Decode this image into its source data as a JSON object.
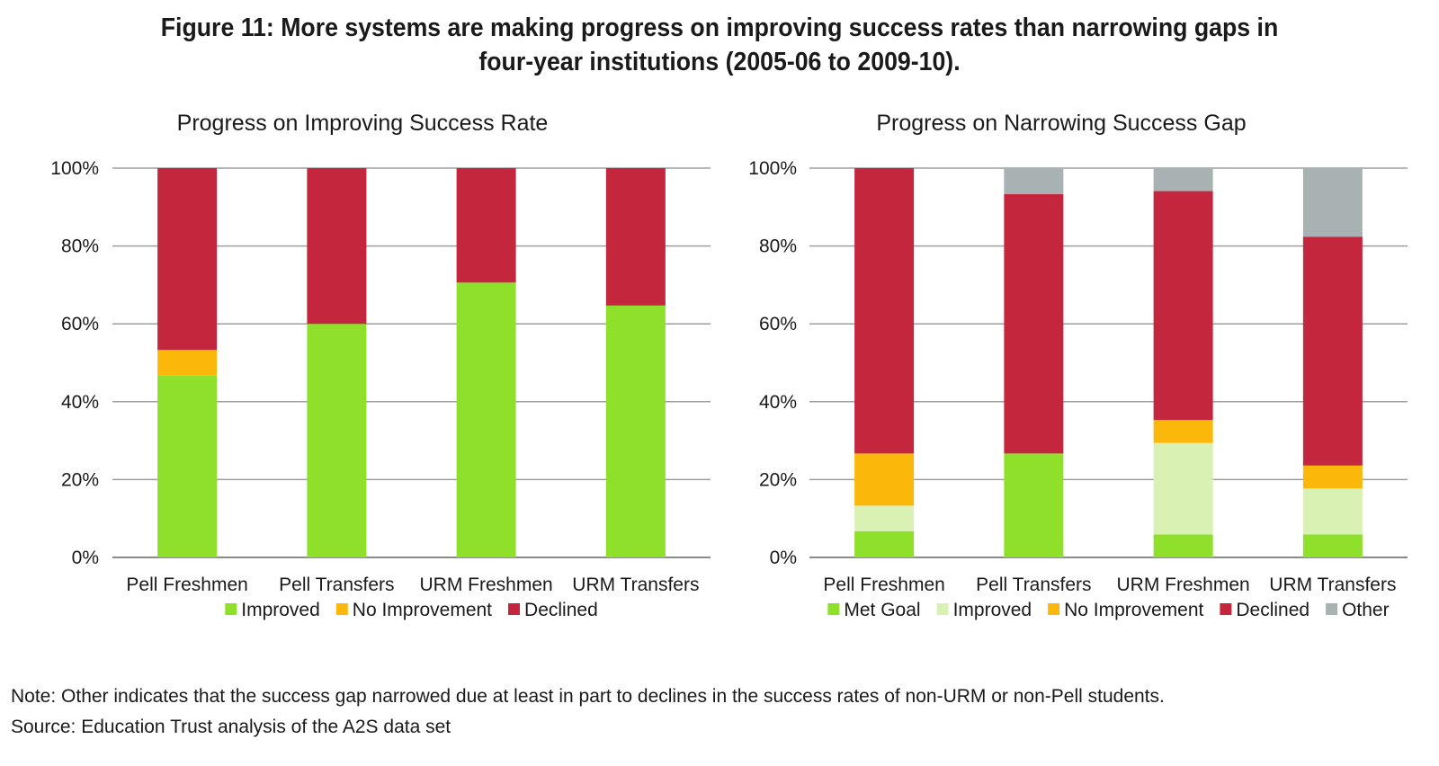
{
  "figure": {
    "title_line1": "Figure 11: More systems are making progress on improving success rates than narrowing gaps in",
    "title_line2": "four-year institutions (2005-06 to 2009-10)."
  },
  "chart_data": [
    {
      "type": "bar",
      "stacked": true,
      "title": "Progress on Improving Success Rate",
      "categories": [
        "Pell Freshmen",
        "Pell Transfers",
        "URM Freshmen",
        "URM Transfers"
      ],
      "y_ticks": [
        "0%",
        "20%",
        "40%",
        "60%",
        "80%",
        "100%"
      ],
      "ylim": [
        0,
        100
      ],
      "grid": true,
      "legend_position": "bottom",
      "series": [
        {
          "name": "Improved",
          "color": "#8fe02a",
          "values": [
            46.7,
            60,
            70.6,
            64.7
          ]
        },
        {
          "name": "No Improvement",
          "color": "#fbb80a",
          "values": [
            6.6,
            0,
            0,
            0
          ]
        },
        {
          "name": "Declined",
          "color": "#c4263e",
          "values": [
            46.7,
            40,
            29.4,
            35.3
          ]
        }
      ]
    },
    {
      "type": "bar",
      "stacked": true,
      "title": "Progress on Narrowing Success Gap",
      "categories": [
        "Pell Freshmen",
        "Pell Transfers",
        "URM Freshmen",
        "URM Transfers"
      ],
      "y_ticks": [
        "0%",
        "20%",
        "40%",
        "60%",
        "80%",
        "100%"
      ],
      "ylim": [
        0,
        100
      ],
      "grid": true,
      "legend_position": "bottom",
      "series": [
        {
          "name": "Met Goal",
          "color": "#8fe02a",
          "values": [
            6.7,
            26.7,
            5.9,
            5.9
          ]
        },
        {
          "name": "Improved",
          "color": "#d9f2b4",
          "values": [
            6.6,
            0,
            23.5,
            11.8
          ]
        },
        {
          "name": "No Improvement",
          "color": "#fbb80a",
          "values": [
            13.4,
            0,
            5.9,
            5.9
          ]
        },
        {
          "name": "Declined",
          "color": "#c4263e",
          "values": [
            73.3,
            66.6,
            58.8,
            58.8
          ]
        },
        {
          "name": "Other",
          "color": "#a9b2b3",
          "values": [
            0,
            6.7,
            5.9,
            17.6
          ]
        }
      ]
    }
  ],
  "notes": {
    "note": "Note: Other indicates that the success gap narrowed due at least in part to declines in the success rates of non-URM or non-Pell students.",
    "source": "Source: Education Trust analysis of the A2S data set"
  }
}
